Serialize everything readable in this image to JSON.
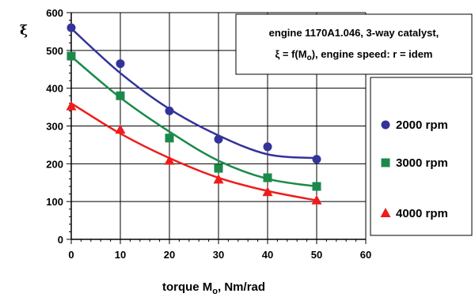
{
  "chart_data": {
    "type": "scatter",
    "ylabel": "ξ",
    "xlabel_main": "torque  M",
    "xlabel_sub": "o",
    "xlabel_unit": ",   Nm/rad",
    "xlim": [
      0,
      60
    ],
    "ylim": [
      0,
      600
    ],
    "xticks": [
      0,
      10,
      20,
      30,
      40,
      50,
      60
    ],
    "yticks": [
      0,
      100,
      200,
      300,
      400,
      500,
      600
    ],
    "grid": true,
    "annotation": {
      "line1": "engine 1170A1.046, 3-way catalyst,",
      "line2_prefix": "ξ = f(M",
      "line2_sub": "o",
      "line2_suffix": "),  engine speed: r = idem"
    },
    "legend_position": "right",
    "series": [
      {
        "name": "2000 rpm",
        "color": "#33339a",
        "marker": "circle",
        "x": [
          0,
          10,
          20,
          30,
          40,
          50
        ],
        "y": [
          560,
          465,
          340,
          265,
          245,
          212
        ],
        "fit": [
          558,
          440,
          345,
          275,
          225,
          215
        ]
      },
      {
        "name": "3000 rpm",
        "color": "#1a8a4a",
        "marker": "square",
        "x": [
          0,
          10,
          20,
          30,
          40,
          50
        ],
        "y": [
          485,
          380,
          268,
          188,
          163,
          140
        ],
        "fit": [
          484,
          375,
          285,
          208,
          160,
          140
        ]
      },
      {
        "name": "4000 rpm",
        "color": "#ee1c1c",
        "marker": "triangle",
        "x": [
          0,
          10,
          20,
          30,
          40,
          50
        ],
        "y": [
          352,
          290,
          208,
          158,
          125,
          103
        ],
        "fit": [
          360,
          280,
          215,
          163,
          128,
          103
        ]
      }
    ]
  }
}
